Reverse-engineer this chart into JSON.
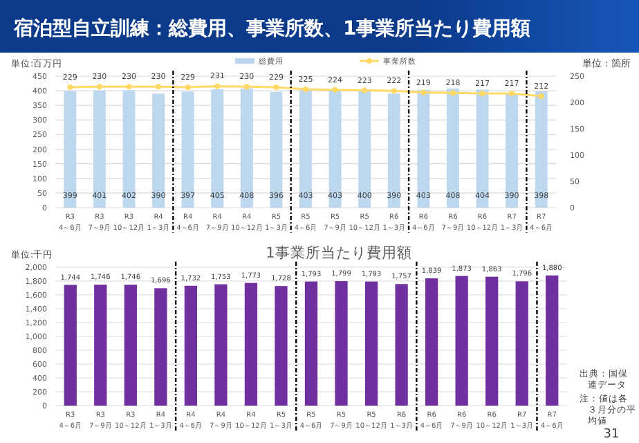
{
  "chart_data": [
    {
      "type": "bar",
      "title": "宿泊型自立訓練：総費用、事業所数、1事業所当たり費用額",
      "ylabel": "単位:百万円",
      "y2label": "単位：箇所",
      "categories": [
        "R3\n4～6月",
        "R3\n7～9月",
        "R3\n10～12月",
        "R4\n1～3月",
        "R4\n4～6月",
        "R4\n7～9月",
        "R4\n10～12月",
        "R5\n1～3月",
        "R5\n4～6月",
        "R5\n7～9月",
        "R5\n10～12月",
        "R6\n1～3月",
        "R6\n4～6月",
        "R6\n7～9月",
        "R6\n10～12月",
        "R7\n1～3月",
        "R7\n4～6月"
      ],
      "series": [
        {
          "name": "総費用",
          "type": "bar",
          "color": "#bdd7ee",
          "values": [
            399,
            401,
            402,
            390,
            397,
            405,
            408,
            396,
            403,
            403,
            400,
            390,
            403,
            408,
            404,
            390,
            398
          ]
        },
        {
          "name": "事業所数",
          "type": "line",
          "axis": "y2",
          "color": "#ffd966",
          "marker": "circle",
          "values": [
            229,
            230,
            230,
            230,
            229,
            231,
            230,
            229,
            225,
            224,
            223,
            222,
            219,
            218,
            217,
            217,
            212
          ]
        }
      ],
      "ylim": [
        0,
        450
      ],
      "yticks": [
        0,
        50,
        100,
        150,
        200,
        250,
        300,
        350,
        400,
        450
      ],
      "y2lim": [
        0,
        250
      ],
      "y2ticks": [
        0,
        50,
        100,
        150,
        200,
        250
      ],
      "grid": "y",
      "legend": "top",
      "data_labels": true
    },
    {
      "type": "bar",
      "title": "1事業所当たり費用額",
      "ylabel": "単位:千円",
      "categories": [
        "R3\n4～6月",
        "R3\n7～9月",
        "R3\n10～12月",
        "R4\n1～3月",
        "R4\n4～6月",
        "R4\n7～9月",
        "R4\n10～12月",
        "R5\n1～3月",
        "R5\n4～6月",
        "R5\n7～9月",
        "R5\n10～12月",
        "R6\n1～3月",
        "R6\n4～6月",
        "R6\n7～9月",
        "R6\n10～12月",
        "R7\n1～3月",
        "R7\n4～6月"
      ],
      "values": [
        1744,
        1746,
        1746,
        1696,
        1732,
        1753,
        1773,
        1728,
        1793,
        1799,
        1793,
        1757,
        1839,
        1873,
        1863,
        1796,
        1880
      ],
      "value_labels": [
        "1,744",
        "1,746",
        "1,746",
        "1,696",
        "1,732",
        "1,753",
        "1,773",
        "1,728",
        "1,793",
        "1,799",
        "1,793",
        "1,757",
        "1,839",
        "1,873",
        "1,863",
        "1,796",
        "1,880"
      ],
      "color": "#7030a0",
      "ylim": [
        0,
        2000
      ],
      "yticks": [
        0,
        200,
        400,
        600,
        800,
        {
          "value": 1000,
          "label": "1,000"
        },
        {
          "value": 1200,
          "label": "1,200"
        },
        {
          "value": 1400,
          "label": "1,400"
        },
        {
          "value": 1600,
          "label": "1,600"
        },
        {
          "value": 1800,
          "label": "1,800"
        },
        {
          "value": 2000,
          "label": "2,000"
        }
      ],
      "grid": "y",
      "annotations": [
        "出典：国保連データ",
        "注：値は各３月分の平均値",
        "31"
      ]
    }
  ]
}
